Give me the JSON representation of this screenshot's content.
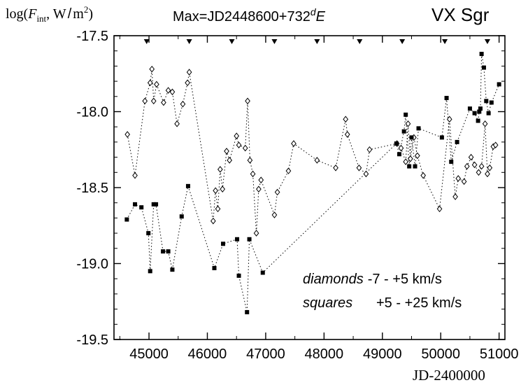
{
  "chart_data": {
    "type": "scatter",
    "ylabel_parts": {
      "prefix": "log(",
      "symbol": "F",
      "subscript": "int",
      "sep": ", W",
      "slash": "/",
      "unit": "m",
      "sup": "2",
      "suffix": ")"
    },
    "xlabel": "JD-2400000",
    "title_parts": {
      "prefix": "Max=JD2448600+732",
      "sup": "d",
      "suffix": "E"
    },
    "star_label": "VX Sgr",
    "legend": {
      "diamonds_word": "diamonds",
      "diamonds_range": "-7 - +5 km/s",
      "squares_word": "squares",
      "squares_range": "+5 - +25 km/s",
      "placement": "bottom-right"
    },
    "xlim": [
      44400,
      51100
    ],
    "ylim": [
      -19.5,
      -17.5
    ],
    "x_ticks": [
      "45000",
      "46000",
      "47000",
      "48000",
      "49000",
      "50000",
      "51000"
    ],
    "y_ticks": [
      "-17.5",
      "-18.0",
      "-18.5",
      "-19.0",
      "-19.5"
    ],
    "maxima_markers_x": [
      44960,
      45690,
      46420,
      47150,
      47880,
      48610,
      49340,
      50070,
      50800
    ],
    "series": [
      {
        "marker": "diamond",
        "x": [
          44630,
          44760,
          44930,
          45020,
          45050,
          45080,
          45130,
          45250,
          45330,
          45400,
          45480,
          45580,
          45660,
          45690,
          46100,
          46140,
          46180,
          46220,
          46260,
          46330,
          46380,
          46500,
          46540,
          46650,
          46690,
          46730,
          46780,
          46840,
          46880,
          46920,
          47150,
          47200,
          47390,
          47480,
          47880,
          48200,
          48370,
          48400,
          48600,
          48720,
          48780,
          49250,
          49320,
          49400,
          49440,
          49480,
          49540,
          49600,
          49700,
          49980,
          50150,
          50250,
          50300,
          50400,
          50450,
          50520,
          50580,
          50650,
          50700,
          50760,
          50800,
          50840,
          50900,
          50940
        ],
        "y": [
          -18.15,
          -18.42,
          -17.93,
          -17.81,
          -17.72,
          -17.93,
          -17.82,
          -17.94,
          -17.86,
          -17.87,
          -18.08,
          -17.95,
          -17.81,
          -17.74,
          -18.72,
          -18.52,
          -18.64,
          -18.38,
          -18.51,
          -18.26,
          -18.32,
          -18.16,
          -18.22,
          -18.24,
          -17.93,
          -18.32,
          -18.41,
          -18.8,
          -18.51,
          -18.45,
          -18.68,
          -18.53,
          -18.39,
          -18.21,
          -18.32,
          -18.37,
          -18.05,
          -18.15,
          -18.37,
          -18.41,
          -18.25,
          -18.21,
          -18.24,
          -18.33,
          -18.08,
          -18.31,
          -18.17,
          -18.29,
          -18.42,
          -18.64,
          -18.05,
          -18.56,
          -18.44,
          -18.46,
          -18.36,
          -18.3,
          -18.35,
          -18.4,
          -18.36,
          -18.08,
          -18.41,
          -18.37,
          -18.23,
          -18.22
        ]
      },
      {
        "marker": "square",
        "x": [
          44620,
          44760,
          44870,
          44990,
          45020,
          45080,
          45120,
          45240,
          45330,
          45400,
          45560,
          45670,
          46120,
          46270,
          46510,
          46540,
          46680,
          46720,
          46950,
          49240,
          49290,
          49370,
          49400,
          49460,
          49500,
          49560,
          49620,
          50020,
          50100,
          50180,
          50280,
          50500,
          50580,
          50640,
          50660,
          50680,
          50700,
          50740,
          50780,
          50820,
          50870,
          51000
        ],
        "y": [
          -18.71,
          -18.61,
          -18.63,
          -18.8,
          -19.05,
          -18.61,
          -18.61,
          -18.92,
          -18.92,
          -19.04,
          -18.69,
          -18.49,
          -19.03,
          -18.87,
          -18.84,
          -19.08,
          -19.32,
          -18.84,
          -19.06,
          -18.21,
          -18.28,
          -18.13,
          -18.02,
          -18.36,
          -18.17,
          -18.36,
          -18.11,
          -18.17,
          -17.91,
          -18.33,
          -18.2,
          -17.98,
          -18.01,
          -18.06,
          -18.0,
          -17.98,
          -17.62,
          -17.71,
          -17.93,
          -18.01,
          -17.94,
          -17.82
        ]
      }
    ],
    "grid": false
  }
}
